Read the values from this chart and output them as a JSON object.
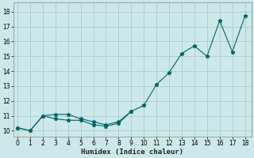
{
  "xlabel": "Humidex (Indice chaleur)",
  "bg_color": "#cce8e8",
  "line_color": "#006666",
  "grid_color": "#aacccc",
  "x_ticks": [
    0,
    1,
    2,
    3,
    4,
    5,
    6,
    7,
    8,
    9,
    10,
    11,
    12,
    13,
    14,
    15,
    16,
    17,
    18
  ],
  "y_ticks": [
    10,
    11,
    12,
    13,
    14,
    15,
    16,
    17,
    18
  ],
  "xlim": [
    -0.3,
    18.5
  ],
  "ylim": [
    9.6,
    18.6
  ],
  "upper_x": [
    0,
    1,
    2,
    3,
    4,
    5,
    6,
    7,
    8,
    9,
    10,
    11,
    12,
    13,
    14,
    15,
    16,
    17,
    18
  ],
  "upper_y": [
    10.2,
    10.0,
    11.0,
    11.1,
    11.1,
    10.8,
    10.6,
    10.4,
    10.6,
    11.3,
    11.7,
    13.1,
    13.9,
    15.2,
    15.7,
    15.0,
    17.4,
    15.3,
    17.7
  ],
  "lower_x": [
    0,
    1,
    2,
    3,
    4,
    5,
    6,
    7,
    8,
    9
  ],
  "lower_y": [
    10.2,
    10.0,
    11.0,
    10.8,
    10.7,
    10.7,
    10.4,
    10.3,
    10.5,
    11.3
  ]
}
